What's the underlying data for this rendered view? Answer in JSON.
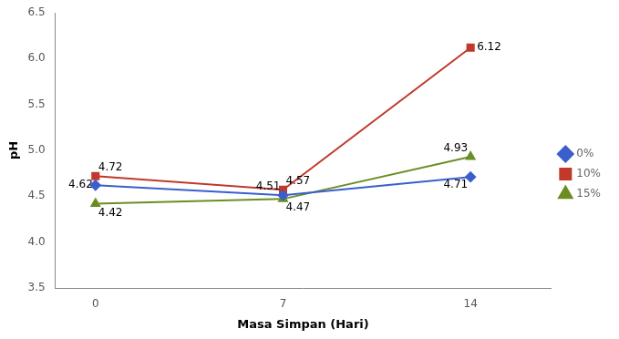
{
  "chart_data": {
    "type": "line",
    "x_label": "Masa Simpan (Hari)",
    "y_label": "pH",
    "x": [
      0,
      7,
      14
    ],
    "series": [
      {
        "name": "0%",
        "color": "#3A5FCD",
        "marker": "diamond",
        "values": [
          4.62,
          4.51,
          4.71
        ]
      },
      {
        "name": "10%",
        "color": "#C0392B",
        "marker": "square",
        "values": [
          4.72,
          4.57,
          6.12
        ]
      },
      {
        "name": "15%",
        "color": "#6B8E23",
        "marker": "triangle",
        "values": [
          4.42,
          4.47,
          4.93
        ]
      }
    ],
    "xlim": [
      -1.5,
      17
    ],
    "xticks": [
      0,
      7,
      14
    ],
    "ylim": [
      3.5,
      6.5
    ],
    "yticks": [
      3.5,
      {
        "value": 4,
        "label": "4.0"
      },
      4.5,
      {
        "value": 5,
        "label": "5.0"
      },
      5.5,
      {
        "value": 6,
        "label": "6.0"
      },
      6.5
    ],
    "grid": false,
    "legend": "right",
    "data_labels": true
  }
}
